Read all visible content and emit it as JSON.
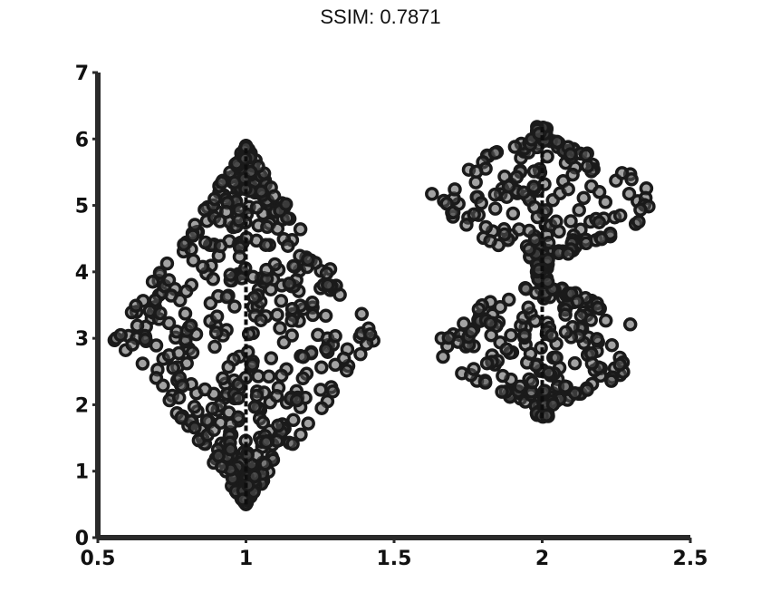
{
  "title": "SSIM: 0.7871",
  "chart_data": {
    "type": "scatter",
    "subtype": "swarm",
    "xlim": [
      0.5,
      2.5
    ],
    "ylim": [
      0,
      7
    ],
    "xticks": [
      "0.5",
      "1",
      "1.5",
      "2",
      "2.5"
    ],
    "yticks": [
      "0",
      "1",
      "2",
      "3",
      "4",
      "5",
      "6",
      "7"
    ],
    "grid": false,
    "legend": "none",
    "marker_color": "#1a1a1a",
    "groups": [
      {
        "x": 1,
        "y_min": 0.5,
        "y_max": 5.9,
        "center": 3.0,
        "max_halfwidth": 0.45,
        "n": 520,
        "shape": "diamond"
      },
      {
        "x": 2,
        "y_min": 1.8,
        "y_max": 6.2,
        "n": 430,
        "shape": "double-lobe",
        "lobes": [
          {
            "center": 5.1,
            "halfwidth": 0.38
          },
          {
            "center": 2.9,
            "halfwidth": 0.35
          }
        ]
      }
    ]
  }
}
